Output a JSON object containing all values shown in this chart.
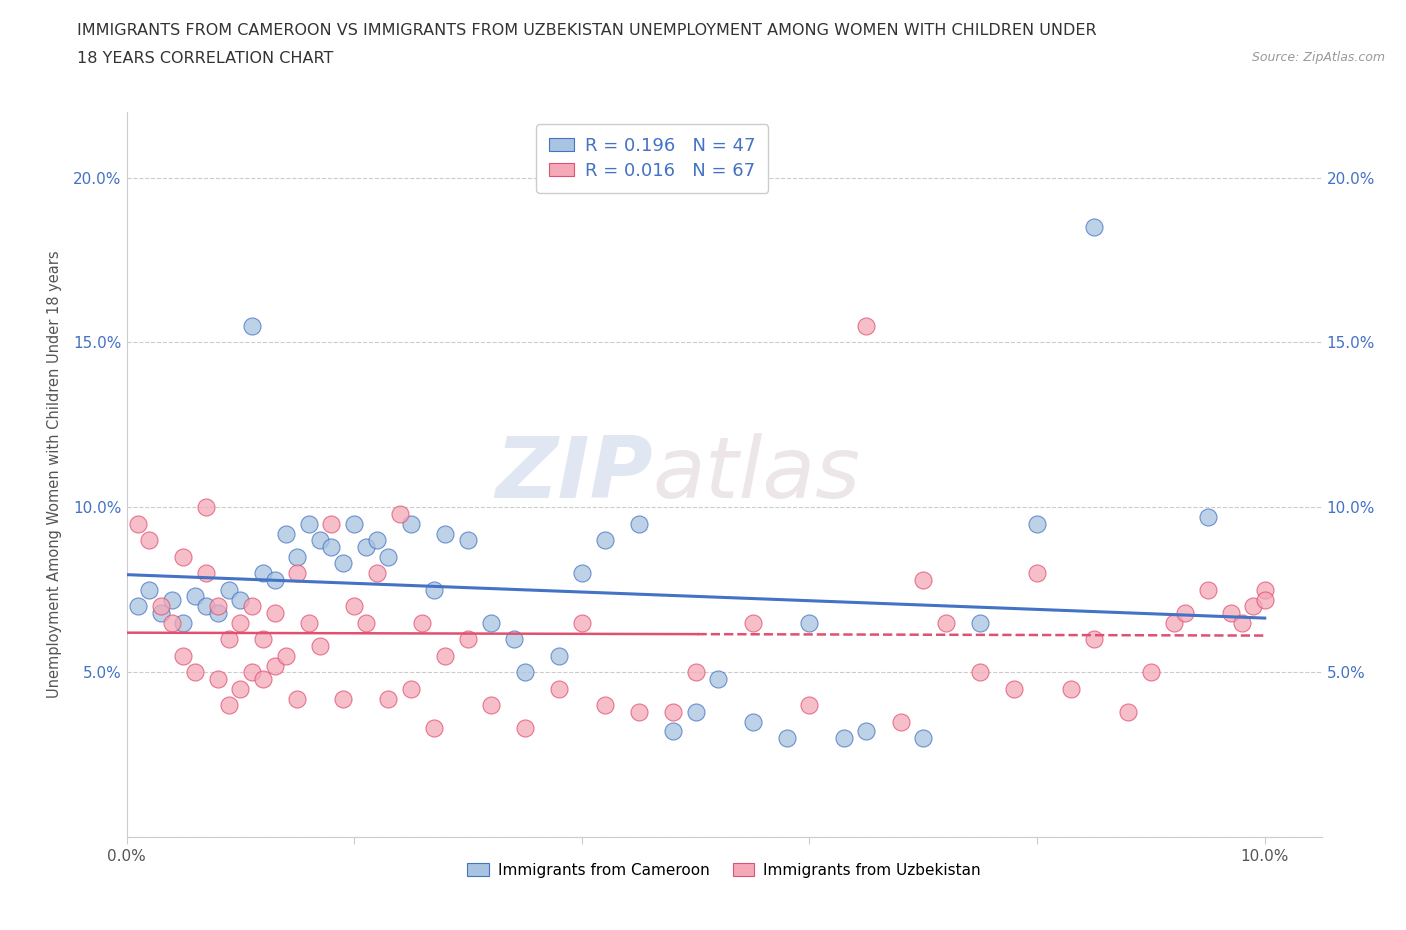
{
  "title_line1": "IMMIGRANTS FROM CAMEROON VS IMMIGRANTS FROM UZBEKISTAN UNEMPLOYMENT AMONG WOMEN WITH CHILDREN UNDER",
  "title_line2": "18 YEARS CORRELATION CHART",
  "source": "Source: ZipAtlas.com",
  "ylabel": "Unemployment Among Women with Children Under 18 years",
  "xlim": [
    0.0,
    0.105
  ],
  "ylim": [
    0.0,
    0.22
  ],
  "xticks": [
    0.0,
    0.02,
    0.04,
    0.06,
    0.08,
    0.1
  ],
  "yticks": [
    0.0,
    0.05,
    0.1,
    0.15,
    0.2
  ],
  "legend_r_cameroon": "R = 0.196",
  "legend_n_cameroon": "N = 47",
  "legend_r_uzbekistan": "R = 0.016",
  "legend_n_uzbekistan": "N = 67",
  "color_cameroon": "#a8c4e0",
  "color_uzbekistan": "#f4a8b8",
  "color_trendline_cameroon": "#4472c4",
  "color_trendline_uzbekistan": "#e05070",
  "watermark_zip": "ZIP",
  "watermark_atlas": "atlas",
  "background_color": "#ffffff",
  "grid_color": "#cccccc",
  "cameroon_x": [
    0.001,
    0.002,
    0.003,
    0.004,
    0.005,
    0.006,
    0.007,
    0.008,
    0.009,
    0.01,
    0.011,
    0.012,
    0.013,
    0.014,
    0.015,
    0.016,
    0.017,
    0.018,
    0.019,
    0.02,
    0.021,
    0.022,
    0.023,
    0.025,
    0.027,
    0.028,
    0.03,
    0.032,
    0.034,
    0.035,
    0.038,
    0.04,
    0.042,
    0.045,
    0.048,
    0.05,
    0.052,
    0.055,
    0.058,
    0.06,
    0.063,
    0.065,
    0.07,
    0.075,
    0.08,
    0.085,
    0.095
  ],
  "cameroon_y": [
    0.07,
    0.075,
    0.068,
    0.072,
    0.065,
    0.073,
    0.07,
    0.068,
    0.075,
    0.072,
    0.155,
    0.08,
    0.078,
    0.092,
    0.085,
    0.095,
    0.09,
    0.088,
    0.083,
    0.095,
    0.088,
    0.09,
    0.085,
    0.095,
    0.075,
    0.092,
    0.09,
    0.065,
    0.06,
    0.05,
    0.055,
    0.08,
    0.09,
    0.095,
    0.032,
    0.038,
    0.048,
    0.035,
    0.03,
    0.065,
    0.03,
    0.032,
    0.03,
    0.065,
    0.095,
    0.185,
    0.097
  ],
  "uzbekistan_x": [
    0.001,
    0.002,
    0.003,
    0.004,
    0.005,
    0.005,
    0.006,
    0.007,
    0.007,
    0.008,
    0.008,
    0.009,
    0.009,
    0.01,
    0.01,
    0.011,
    0.011,
    0.012,
    0.012,
    0.013,
    0.013,
    0.014,
    0.015,
    0.015,
    0.016,
    0.017,
    0.018,
    0.019,
    0.02,
    0.021,
    0.022,
    0.023,
    0.024,
    0.025,
    0.026,
    0.027,
    0.028,
    0.03,
    0.032,
    0.035,
    0.038,
    0.04,
    0.042,
    0.045,
    0.048,
    0.05,
    0.055,
    0.06,
    0.065,
    0.068,
    0.07,
    0.072,
    0.075,
    0.078,
    0.08,
    0.083,
    0.085,
    0.088,
    0.09,
    0.092,
    0.093,
    0.095,
    0.097,
    0.098,
    0.099,
    0.1,
    0.1
  ],
  "uzbekistan_y": [
    0.095,
    0.09,
    0.07,
    0.065,
    0.055,
    0.085,
    0.05,
    0.1,
    0.08,
    0.048,
    0.07,
    0.04,
    0.06,
    0.045,
    0.065,
    0.05,
    0.07,
    0.048,
    0.06,
    0.052,
    0.068,
    0.055,
    0.08,
    0.042,
    0.065,
    0.058,
    0.095,
    0.042,
    0.07,
    0.065,
    0.08,
    0.042,
    0.098,
    0.045,
    0.065,
    0.033,
    0.055,
    0.06,
    0.04,
    0.033,
    0.045,
    0.065,
    0.04,
    0.038,
    0.038,
    0.05,
    0.065,
    0.04,
    0.155,
    0.035,
    0.078,
    0.065,
    0.05,
    0.045,
    0.08,
    0.045,
    0.06,
    0.038,
    0.05,
    0.065,
    0.068,
    0.075,
    0.068,
    0.065,
    0.07,
    0.075,
    0.072
  ]
}
